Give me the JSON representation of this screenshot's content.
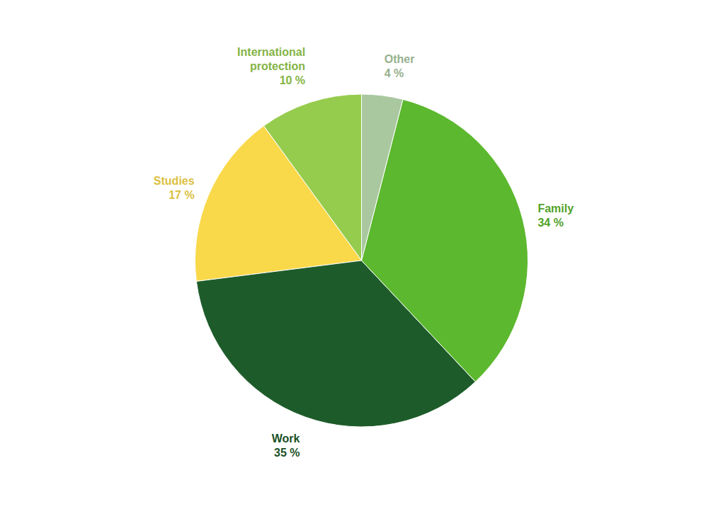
{
  "chart_data": {
    "type": "pie",
    "categories": [
      "International\nprotection",
      "Studies",
      "Work",
      "Family",
      "Other"
    ],
    "values": [
      10,
      17,
      35,
      34,
      4
    ],
    "value_labels": [
      "10 %",
      "17 %",
      "35 %",
      "34 %",
      "4 %"
    ],
    "colors": [
      "#96cc4e",
      "#f9d84a",
      "#1d5c2a",
      "#5cb82e",
      "#aac8a0"
    ],
    "data_labels": true
  }
}
